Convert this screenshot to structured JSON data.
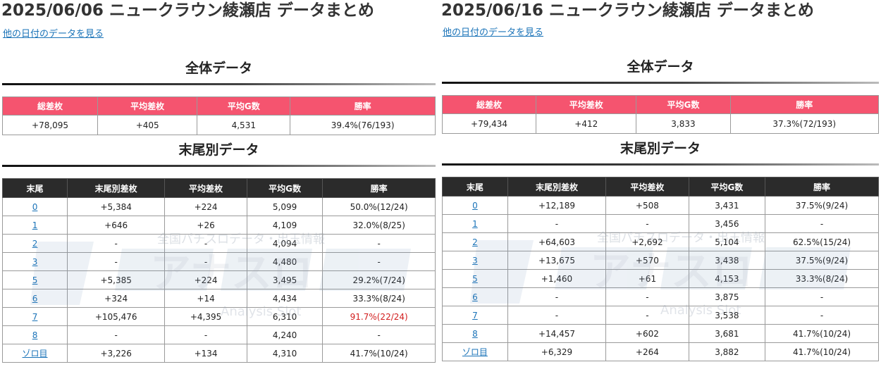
{
  "panels": [
    {
      "title": "2025/06/06 ニュークラウン綾瀬店 データまとめ",
      "other_dates_link": "他の日付のデータを見る",
      "overall_heading": "全体データ",
      "overall_headers": [
        "総差枚",
        "平均差枚",
        "平均G数",
        "勝率"
      ],
      "overall_values": [
        "+78,095",
        "+405",
        "4,531",
        "39.4%(76/193)"
      ],
      "digit_heading": "末尾別データ",
      "digit_headers": [
        "末尾",
        "末尾別差枚",
        "平均差枚",
        "平均G数",
        "勝率"
      ],
      "rows": [
        [
          "0",
          "+5,384",
          "+224",
          "5,099",
          "50.0%(12/24)"
        ],
        [
          "1",
          "+646",
          "+26",
          "4,109",
          "32.0%(8/25)"
        ],
        [
          "2",
          "-",
          "-",
          "4,094",
          "-"
        ],
        [
          "3",
          "-",
          "-",
          "4,480",
          "-"
        ],
        [
          "5",
          "+5,385",
          "+224",
          "3,495",
          "29.2%(7/24)"
        ],
        [
          "6",
          "+324",
          "+14",
          "4,434",
          "33.3%(8/24)"
        ],
        [
          "7",
          "+105,476",
          "+4,395",
          "6,310",
          "91.7%(22/24)"
        ],
        [
          "8",
          "-",
          "-",
          "4,240",
          "-"
        ],
        [
          "ゾロ目",
          "+3,226",
          "+134",
          "4,310",
          "41.7%(10/24)"
        ]
      ]
    },
    {
      "title": "2025/06/16 ニュークラウン綾瀬店 データまとめ",
      "other_dates_link": "他の日付のデータを見る",
      "overall_heading": "全体データ",
      "overall_headers": [
        "総差枚",
        "平均差枚",
        "平均G数",
        "勝率"
      ],
      "overall_values": [
        "+79,434",
        "+412",
        "3,833",
        "37.3%(72/193)"
      ],
      "digit_heading": "末尾別データ",
      "digit_headers": [
        "末尾",
        "末尾別差枚",
        "平均差枚",
        "平均G数",
        "勝率"
      ],
      "rows": [
        [
          "0",
          "+12,189",
          "+508",
          "3,431",
          "37.5%(9/24)"
        ],
        [
          "1",
          "-",
          "-",
          "3,456",
          "-"
        ],
        [
          "2",
          "+64,603",
          "+2,692",
          "5,104",
          "62.5%(15/24)"
        ],
        [
          "3",
          "+13,675",
          "+570",
          "3,438",
          "37.5%(9/24)"
        ],
        [
          "5",
          "+1,460",
          "+61",
          "4,153",
          "33.3%(8/24)"
        ],
        [
          "6",
          "-",
          "-",
          "3,875",
          "-"
        ],
        [
          "7",
          "-",
          "-",
          "3,538",
          "-"
        ],
        [
          "8",
          "+14,457",
          "+602",
          "3,681",
          "41.7%(10/24)"
        ],
        [
          "ゾロ目",
          "+6,329",
          "+264",
          "3,882",
          "41.7%(10/24)"
        ]
      ]
    }
  ],
  "watermark": {
    "tagline": "全国パチスロデータ・出玉情報",
    "logo_text": "アナスロ",
    "subtitle": "Analysis Slot"
  },
  "colors": {
    "summary_header_bg": "#f5546f",
    "digit_header_bg": "#2b2b2b",
    "link": "#1a73b8",
    "highlight": "#d21e1e"
  }
}
